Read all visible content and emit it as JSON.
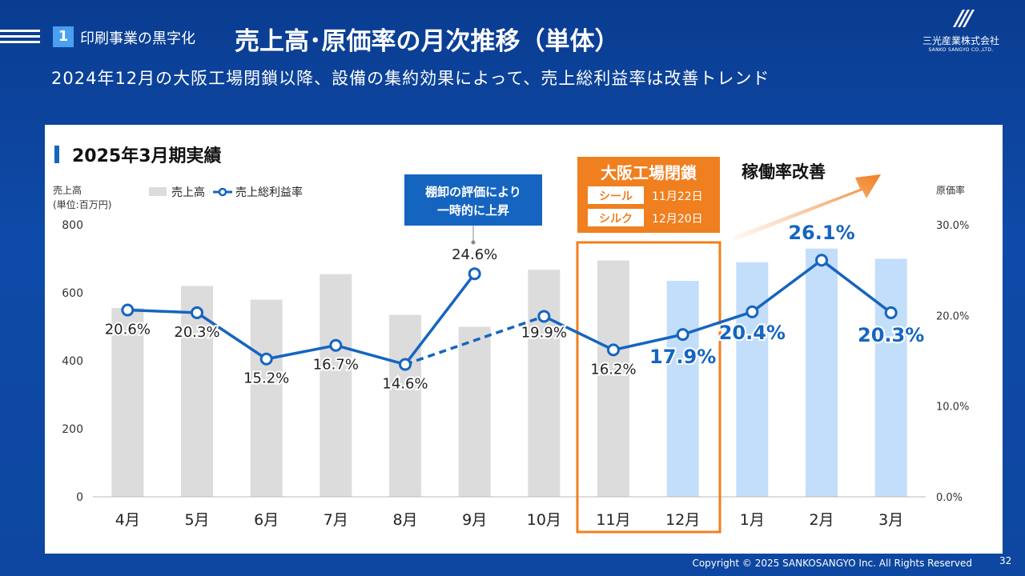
{
  "header": {
    "section_number": "1",
    "section_label": "印刷事業の黒字化",
    "title": "売上高･原価率の月次推移（単体）",
    "subtitle": "2024年12月の大阪工場閉鎖以降、設備の集約効果によって、売上総利益率は改善トレンド"
  },
  "logo": {
    "name": "三光産業株式会社",
    "sub": "SANKO SANGYO CO.,LTD."
  },
  "footer": {
    "copyright": "Copyright © 2025  SANKOSANGYO Inc. All Rights Reserved",
    "page": "32"
  },
  "colors": {
    "bar_gray": "#dcdcdc",
    "bar_blue": "#c3defa",
    "line": "#1565c0",
    "highlight": "#f07f1f"
  },
  "chart_data": {
    "type": "bar",
    "title": "2025年3月期実績",
    "categories": [
      "4月",
      "5月",
      "6月",
      "7月",
      "8月",
      "9月",
      "10月",
      "11月",
      "12月",
      "1月",
      "2月",
      "3月"
    ],
    "y_left_label_line1": "売上高",
    "y_left_label_line2": "(単位:百万円)",
    "y_right_label": "原価率",
    "ylim": [
      0,
      800
    ],
    "y_left_ticks": [
      "0",
      "200",
      "400",
      "600",
      "800"
    ],
    "y2lim": [
      0,
      30
    ],
    "y_right_ticks": [
      "0.0%",
      "10.0%",
      "20.0%",
      "30.0%"
    ],
    "series": [
      {
        "name": "売上高",
        "type": "bar",
        "values": [
          555,
          620,
          580,
          655,
          535,
          500,
          668,
          695,
          635,
          690,
          730,
          700
        ]
      },
      {
        "name": "売上総利益率",
        "type": "line",
        "values": [
          20.6,
          20.3,
          15.2,
          16.7,
          14.6,
          24.6,
          19.9,
          16.2,
          17.9,
          20.4,
          26.1,
          20.3
        ],
        "labels": [
          "20.6%",
          "20.3%",
          "15.2%",
          "16.7%",
          "14.6%",
          "24.6%",
          "19.9%",
          "16.2%",
          "17.9%",
          "20.4%",
          "26.1%",
          "20.3%"
        ]
      }
    ],
    "bar_highlight_from_index": 8,
    "line_dashed_segment": [
      4,
      6
    ],
    "annotations": {
      "inventory_line1": "棚卸の評価により",
      "inventory_line2": "一時的に上昇",
      "closure_title": "大阪工場閉鎖",
      "closure_rows": [
        {
          "label": "シール",
          "date": "11月22日"
        },
        {
          "label": "シルク",
          "date": "12月20日"
        }
      ],
      "improvement": "稼働率改善"
    }
  }
}
